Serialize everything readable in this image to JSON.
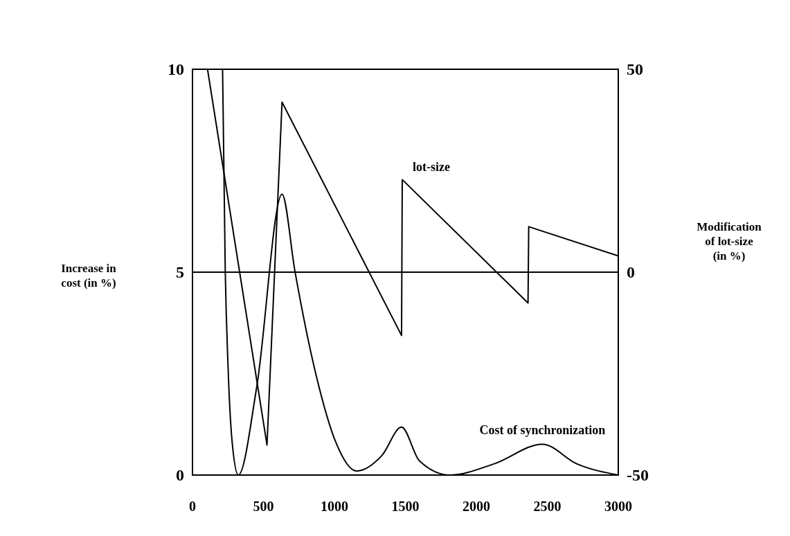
{
  "chart_data": {
    "type": "line",
    "ylabel": "Increase in cost (in %)",
    "y2label": "Modification of lot-size (in %)",
    "xlim": [
      0,
      3000
    ],
    "xticks": [
      0,
      500,
      1000,
      1500,
      2000,
      2500,
      3000
    ],
    "ylim": [
      0,
      10
    ],
    "yticks": [
      0,
      5,
      10
    ],
    "y2lim": [
      -50,
      50
    ],
    "y2ticks": [
      -50,
      0,
      50
    ],
    "series": [
      {
        "name": "lot-size",
        "color": "#000000",
        "axis": "y2",
        "x": [
          106,
          525,
          631,
          1473,
          1478,
          2364,
          2369,
          3000
        ],
        "values": [
          50,
          -42.6,
          41.9,
          -15.6,
          22.8,
          -7.6,
          11.2,
          4
        ]
      },
      {
        "name": "Cost of synchronization",
        "color": "#000000",
        "axis": "y",
        "x": [
          212,
          231,
          250,
          279,
          323,
          453,
          631,
          722,
          876,
          1011,
          1156,
          1334,
          1473,
          1599,
          1811,
          2128,
          2465,
          2706,
          3000
        ],
        "values": [
          10,
          5.02,
          2.73,
          0.83,
          0,
          2.18,
          6.92,
          5.02,
          2.39,
          0.8,
          0.1,
          0.48,
          1.18,
          0.35,
          0,
          0.28,
          0.76,
          0.28,
          0
        ]
      }
    ],
    "ref_lines": [
      {
        "axis": "y2",
        "value": 0,
        "color": "#000000"
      }
    ],
    "marker": "none",
    "line_style": "solid"
  }
}
